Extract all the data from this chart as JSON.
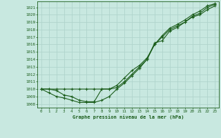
{
  "title": "Graphe pression niveau de la mer (hPa)",
  "bg_color": "#c8e8e0",
  "grid_color": "#b0d4cc",
  "line_color": "#1a5c1a",
  "xlim": [
    -0.5,
    23.5
  ],
  "ylim": [
    1007.5,
    1021.8
  ],
  "yticks": [
    1008,
    1009,
    1010,
    1011,
    1012,
    1013,
    1014,
    1015,
    1016,
    1017,
    1018,
    1019,
    1020,
    1021
  ],
  "xticks": [
    0,
    1,
    2,
    3,
    4,
    5,
    6,
    7,
    8,
    9,
    10,
    11,
    12,
    13,
    14,
    15,
    16,
    17,
    18,
    19,
    20,
    21,
    22,
    23
  ],
  "series1_x": [
    0,
    1,
    2,
    3,
    4,
    5,
    6,
    7,
    8,
    9,
    10,
    11,
    12,
    13,
    14,
    15,
    16,
    17,
    18,
    19,
    20,
    21,
    22,
    23
  ],
  "series1_y": [
    1010,
    1010,
    1010,
    1010,
    1010,
    1010,
    1010,
    1010,
    1010,
    1010,
    1010.5,
    1011.5,
    1012.5,
    1013.2,
    1014.2,
    1016.0,
    1017.2,
    1018.2,
    1018.7,
    1019.3,
    1020.0,
    1020.5,
    1021.2,
    1021.5
  ],
  "series2_x": [
    0,
    1,
    2,
    3,
    4,
    5,
    6,
    7,
    8,
    9,
    10,
    11,
    12,
    13,
    14,
    15,
    16,
    17,
    18,
    19,
    20,
    21,
    22,
    23
  ],
  "series2_y": [
    1010,
    1009.5,
    1009.0,
    1008.8,
    1008.5,
    1008.2,
    1008.2,
    1008.2,
    1008.5,
    1009.0,
    1010.0,
    1010.8,
    1011.8,
    1012.8,
    1014.0,
    1016.0,
    1017.0,
    1018.0,
    1018.5,
    1019.0,
    1019.8,
    1020.2,
    1021.0,
    1021.4
  ],
  "series3_x": [
    0,
    1,
    2,
    3,
    4,
    5,
    6,
    7,
    8,
    9,
    10,
    11,
    12,
    13,
    14,
    15,
    16,
    17,
    18,
    19,
    20,
    21,
    22,
    23
  ],
  "series3_y": [
    1010,
    1010,
    1009.8,
    1009.2,
    1009.0,
    1008.5,
    1008.3,
    1008.3,
    1010,
    1010,
    1010.2,
    1011.0,
    1012.0,
    1013.0,
    1014.0,
    1016.2,
    1016.5,
    1017.8,
    1018.3,
    1019.0,
    1019.7,
    1020.0,
    1020.7,
    1021.2
  ]
}
